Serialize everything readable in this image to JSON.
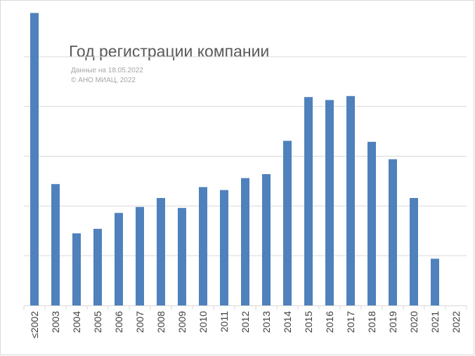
{
  "chart_data": {
    "type": "bar",
    "title": "Год регистрации компании",
    "subtitle_lines": [
      "Данные на 18.05.2022",
      "© АНО МИАЦ, 2022"
    ],
    "categories": [
      "≤2002",
      "2003",
      "2004",
      "2005",
      "2006",
      "2007",
      "2008",
      "2009",
      "2010",
      "2011",
      "2012",
      "2013",
      "2014",
      "2015",
      "2016",
      "2017",
      "2018",
      "2019",
      "2020",
      "2021",
      "2022"
    ],
    "values": [
      588,
      244,
      145,
      154,
      186,
      198,
      216,
      196,
      238,
      232,
      256,
      264,
      331,
      419,
      413,
      421,
      329,
      294,
      216,
      94,
      0
    ],
    "ylim": [
      0,
      600
    ],
    "grid": true,
    "color": "#4f81bd",
    "xlabel": "",
    "ylabel": ""
  }
}
